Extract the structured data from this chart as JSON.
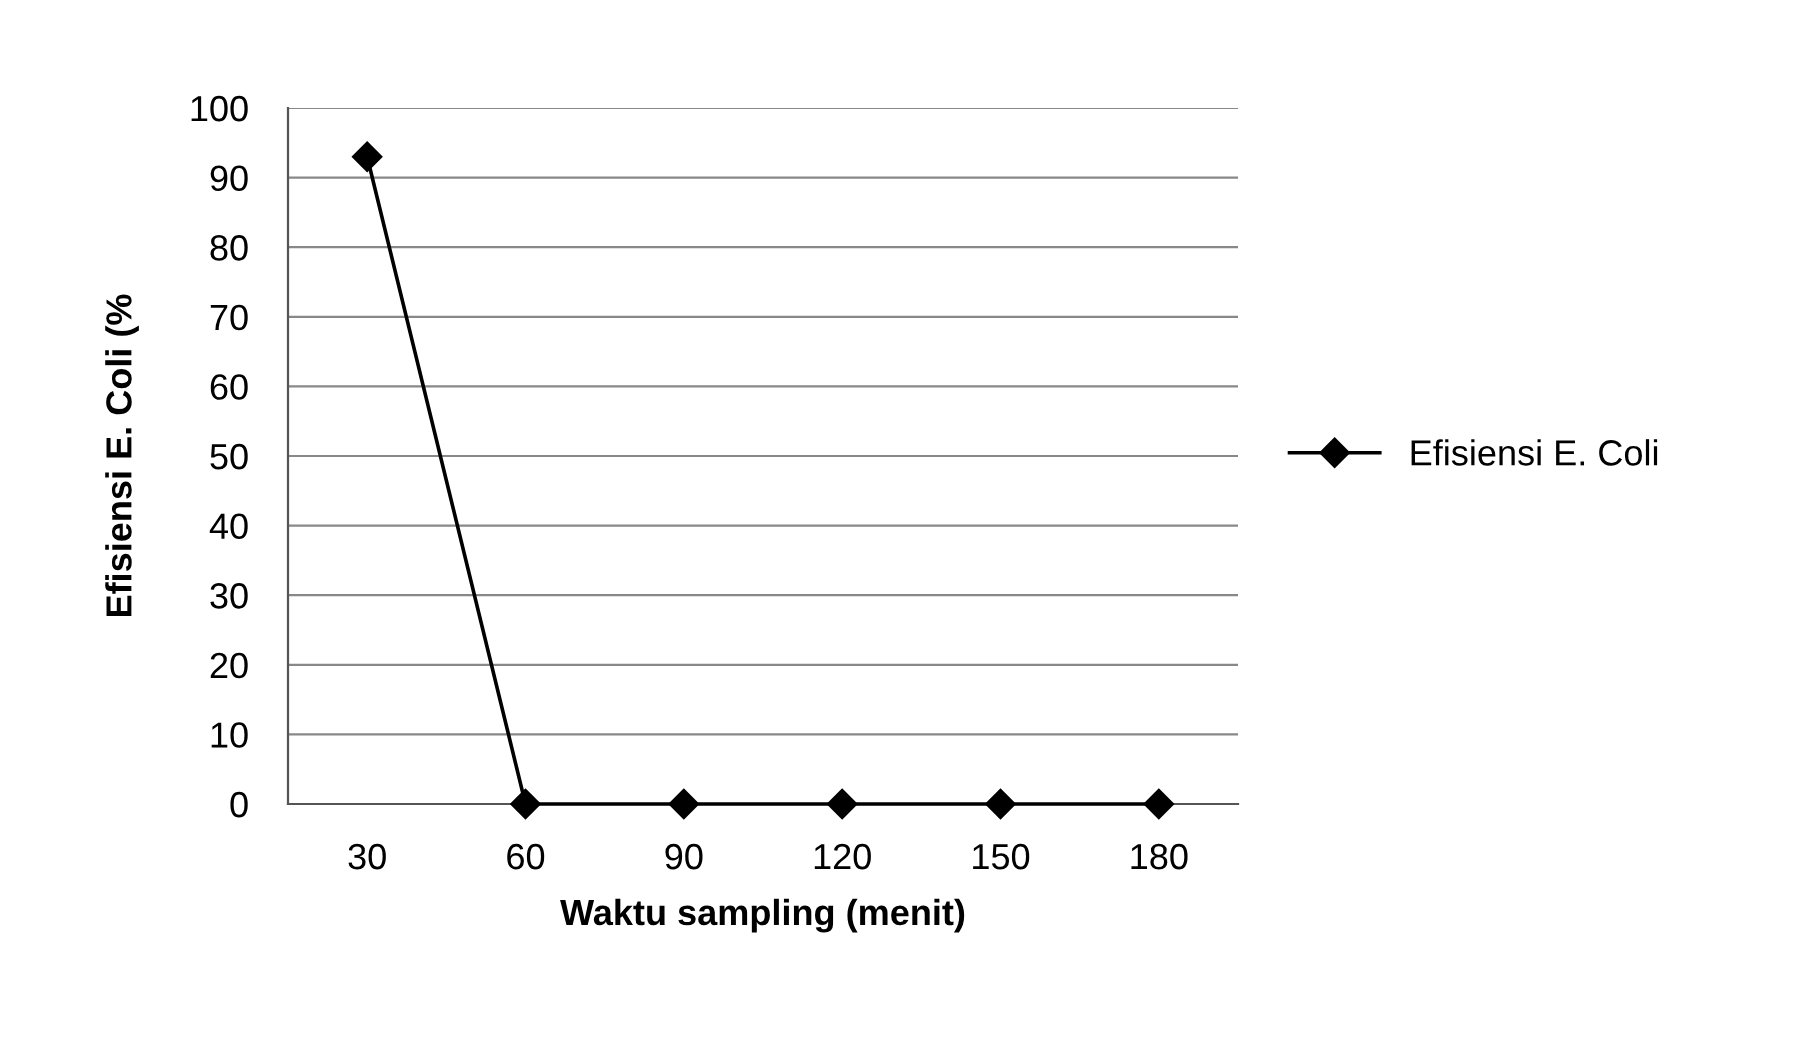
{
  "chart_data": {
    "type": "line",
    "xlabel": "Waktu sampling (menit)",
    "ylabel": "Efisiensi E. Coli (%",
    "categories": [
      "30",
      "60",
      "90",
      "120",
      "150",
      "180"
    ],
    "series": [
      {
        "name": "Efisiensi E. Coli",
        "color": "#000000",
        "values": [
          93,
          0,
          0,
          0,
          0,
          0
        ]
      }
    ],
    "ylim": [
      0,
      100
    ],
    "yticks": [
      0,
      10,
      20,
      30,
      40,
      50,
      60,
      70,
      80,
      90,
      100
    ],
    "grid": "y",
    "legend": "right",
    "marker": "diamond",
    "line_style": "solid"
  }
}
